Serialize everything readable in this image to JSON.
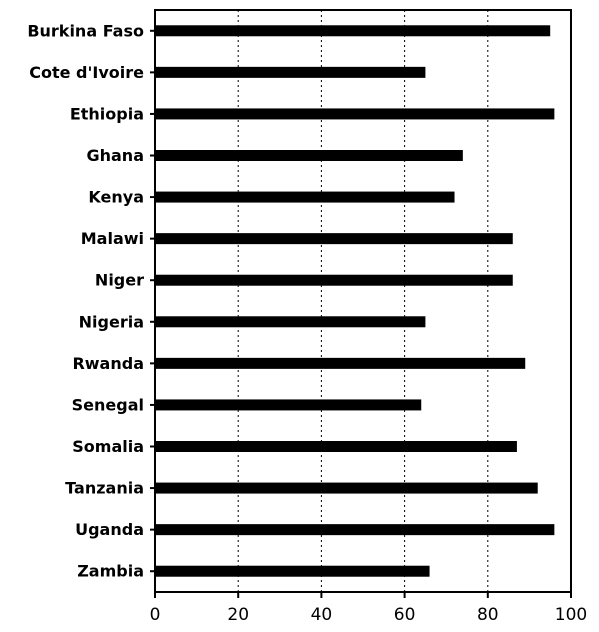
{
  "chart_data": {
    "type": "bar",
    "orientation": "horizontal",
    "title": "",
    "xlabel": "",
    "ylabel": "",
    "categories": [
      "Burkina Faso",
      "Cote d'Ivoire",
      "Ethiopia",
      "Ghana",
      "Kenya",
      "Malawi",
      "Niger",
      "Nigeria",
      "Rwanda",
      "Senegal",
      "Somalia",
      "Tanzania",
      "Uganda",
      "Zambia"
    ],
    "values": [
      95,
      65,
      96,
      74,
      72,
      86,
      86,
      65,
      89,
      64,
      87,
      92,
      96,
      66
    ],
    "xlim": [
      0,
      100
    ],
    "xticks": [
      0,
      20,
      40,
      60,
      80,
      100
    ],
    "grid": "vertical dotted",
    "bar_color": "#000000"
  }
}
